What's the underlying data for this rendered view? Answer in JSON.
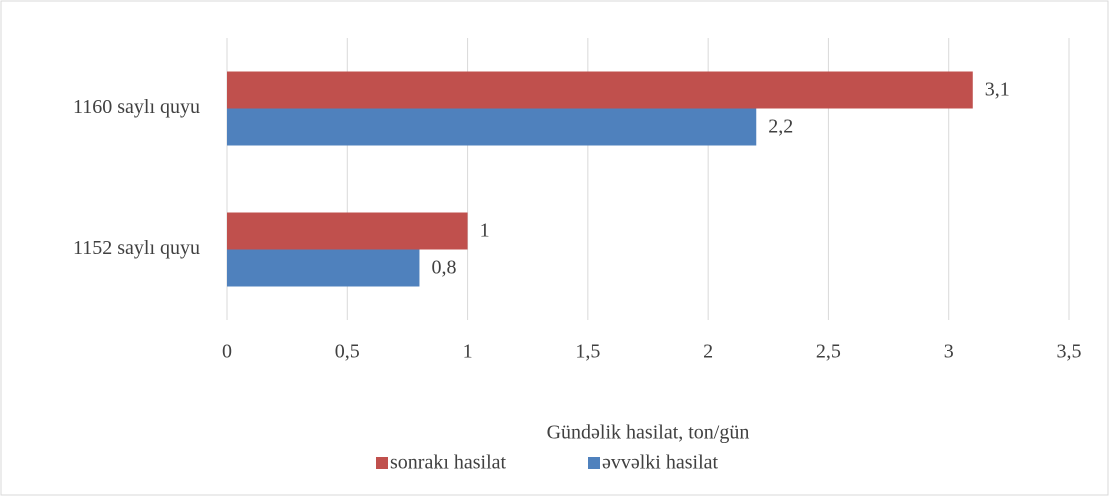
{
  "chart_data": {
    "type": "barh",
    "categories": [
      "1152 saylı quyu",
      "1160 saylı quyu"
    ],
    "series": [
      {
        "name": "sonrakı hasilat",
        "color": "#C0504D",
        "values": [
          1,
          3.1
        ],
        "value_labels": [
          "1",
          "3,1"
        ]
      },
      {
        "name": "əvvəlki hasilat",
        "color": "#4F81BD",
        "values": [
          0.8,
          2.2
        ],
        "value_labels": [
          "0,8",
          "2,2"
        ]
      }
    ],
    "xlabel": "Gündəlik hasilat, ton/gün",
    "xlim": [
      0,
      3.5
    ],
    "xticks": [
      0,
      {
        "value": 0.5,
        "label": "0,5"
      },
      1,
      {
        "value": 1.5,
        "label": "1,5"
      },
      2,
      {
        "value": 2.5,
        "label": "2,5"
      },
      3,
      {
        "value": 3.5,
        "label": "3,5"
      }
    ],
    "grid": true,
    "legend": "bottom"
  }
}
